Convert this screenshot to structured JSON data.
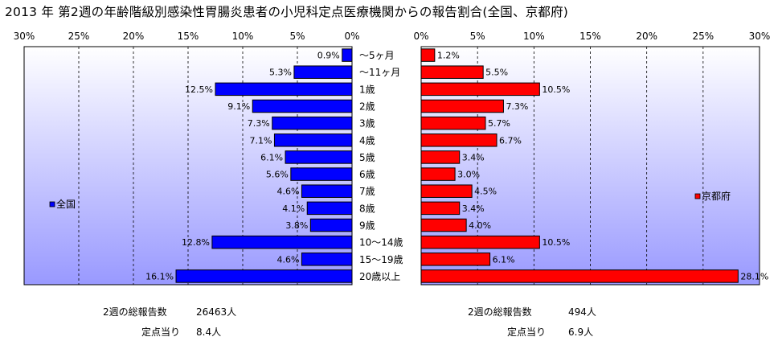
{
  "title": "2013 年 第2週の年齢階級別感染性胃腸炎患者の小児科定点医療機関からの報告割合(全国、京都府)",
  "colors": {
    "left_bar": "#0000ff",
    "right_bar": "#ff0000",
    "plot_bg_top": "#ffffff",
    "plot_bg_bottom": "#9999ff",
    "border": "#000000"
  },
  "chart_data": {
    "type": "bar",
    "orientation": "horizontal",
    "categories": [
      "〜5ヶ月",
      "〜11ヶ月",
      "1歳",
      "2歳",
      "3歳",
      "4歳",
      "5歳",
      "6歳",
      "7歳",
      "8歳",
      "9歳",
      "10〜14歳",
      "15〜19歳",
      "20歳以上"
    ],
    "xlim": [
      0,
      30
    ],
    "tick_labels": [
      "0%",
      "5%",
      "10%",
      "15%",
      "20%",
      "25%",
      "30%"
    ],
    "grid": true,
    "series": [
      {
        "name": "全国",
        "values": [
          0.9,
          5.3,
          12.5,
          9.1,
          7.3,
          7.1,
          6.1,
          5.6,
          4.6,
          4.1,
          3.8,
          12.8,
          4.6,
          16.1
        ],
        "labels": [
          "0.9%",
          "5.3%",
          "12.5%",
          "9.1%",
          "7.3%",
          "7.1%",
          "6.1%",
          "5.6%",
          "4.6%",
          "4.1%",
          "3.8%",
          "12.8%",
          "4.6%",
          "16.1%"
        ]
      },
      {
        "name": "京都府",
        "values": [
          1.2,
          5.5,
          10.5,
          7.3,
          5.7,
          6.7,
          3.4,
          3.0,
          4.5,
          3.4,
          4.0,
          10.5,
          6.1,
          28.1
        ],
        "labels": [
          "1.2%",
          "5.5%",
          "10.5%",
          "7.3%",
          "5.7%",
          "6.7%",
          "3.4%",
          "3.0%",
          "4.5%",
          "3.4%",
          "4.0%",
          "10.5%",
          "6.1%",
          "28.1%"
        ]
      }
    ],
    "legend_placement": "left panel middle-left; right panel middle-right"
  },
  "summary": {
    "left": {
      "total_label": "2週の総報告数",
      "total_value": "26463人",
      "per_label": "定点当り",
      "per_value": "8.4人"
    },
    "right": {
      "total_label": "2週の総報告数",
      "total_value": "494人",
      "per_label": "定点当り",
      "per_value": "6.9人"
    }
  }
}
